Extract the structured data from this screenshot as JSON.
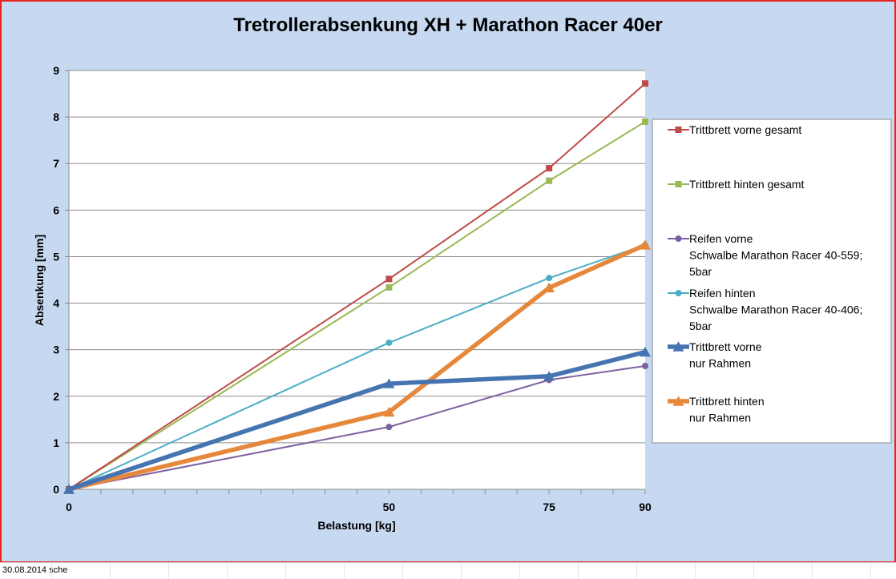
{
  "chart_data": {
    "type": "line",
    "title": "Tretrollerabsenkung XH + Marathon Racer 40er",
    "xlabel": "Belastung [kg]",
    "ylabel": "Absenkung [mm]",
    "x": [
      0,
      50,
      75,
      90
    ],
    "x_tick_labels": [
      "0",
      "50",
      "75",
      "90"
    ],
    "xlim": [
      0,
      90
    ],
    "ylim": [
      0,
      9
    ],
    "y_ticks": [
      0,
      1,
      2,
      3,
      4,
      5,
      6,
      7,
      8,
      9
    ],
    "grid": true,
    "legend_position": "right",
    "series": [
      {
        "name": "Trittbrett vorne gesamt",
        "legend_lines": [
          "Trittbrett vorne gesamt"
        ],
        "values": [
          0,
          4.52,
          6.9,
          8.72
        ],
        "color": "#be4b48",
        "marker": "square",
        "weight": "thin"
      },
      {
        "name": "Trittbrett hinten gesamt",
        "legend_lines": [
          "Trittbrett hinten gesamt"
        ],
        "values": [
          0,
          4.34,
          6.63,
          7.9
        ],
        "color": "#98b954",
        "marker": "square",
        "weight": "thin"
      },
      {
        "name": "Reifen vorne Schwalbe Marathon Racer 40-559; 5bar",
        "legend_lines": [
          "Reifen vorne",
          "Schwalbe Marathon Racer 40-559;",
          "5bar"
        ],
        "values": [
          0,
          1.34,
          2.35,
          2.65
        ],
        "color": "#7d60a0",
        "marker": "circle",
        "weight": "thin"
      },
      {
        "name": "Reifen hinten Schwalbe Marathon Racer 40-406; 5bar",
        "legend_lines": [
          "Reifen hinten",
          "Schwalbe Marathon Racer 40-406;",
          "5bar"
        ],
        "values": [
          0,
          3.15,
          4.54,
          5.25
        ],
        "color": "#4bacc6",
        "marker": "circle",
        "weight": "thin"
      },
      {
        "name": "Trittbrett vorne nur Rahmen",
        "legend_lines": [
          "Trittbrett vorne",
          "nur Rahmen"
        ],
        "values": [
          0,
          2.27,
          2.43,
          2.95
        ],
        "color": "#4674b0",
        "marker": "triangle",
        "weight": "thick"
      },
      {
        "name": "Trittbrett hinten nur Rahmen",
        "legend_lines": [
          "Trittbrett hinten",
          "nur Rahmen"
        ],
        "values": [
          0,
          1.66,
          4.33,
          5.25
        ],
        "color": "#e6883c",
        "marker": "triangle",
        "weight": "thick"
      }
    ]
  },
  "footer": {
    "text": "30.08.2014 sche"
  }
}
